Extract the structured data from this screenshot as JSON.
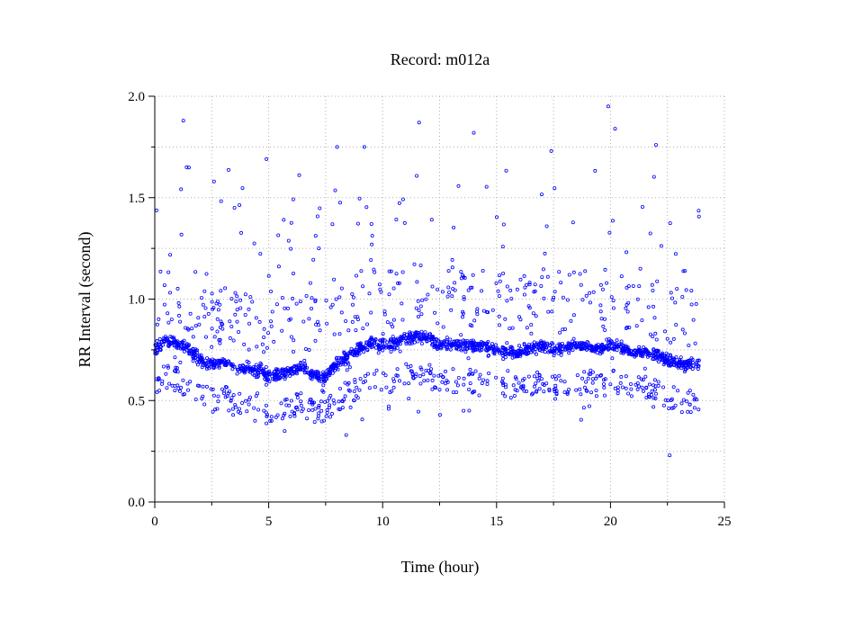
{
  "chart_data": {
    "type": "scatter",
    "title": "Record:  m012a",
    "xlabel": "Time (hour)",
    "ylabel": "RR Interval (second)",
    "xlim": [
      0,
      25
    ],
    "ylim": [
      0.0,
      2.0
    ],
    "xticks": [
      "0",
      "5",
      "10",
      "15",
      "20",
      "25"
    ],
    "yticks": [
      "0.0",
      "0.5",
      "1.0",
      "1.5",
      "2.0"
    ],
    "grid": true,
    "marker_color": "#0000ff",
    "marker": "open-circle",
    "series": [
      {
        "dense_band": {
          "description_points": [
            [
              0.0,
              0.75
            ],
            [
              0.5,
              0.8
            ],
            [
              1.0,
              0.78
            ],
            [
              1.5,
              0.75
            ],
            [
              2.0,
              0.7
            ],
            [
              2.5,
              0.68
            ],
            [
              3.0,
              0.7
            ],
            [
              3.5,
              0.66
            ],
            [
              4.0,
              0.66
            ],
            [
              4.5,
              0.65
            ],
            [
              5.0,
              0.62
            ],
            [
              5.5,
              0.63
            ],
            [
              6.0,
              0.65
            ],
            [
              6.5,
              0.66
            ],
            [
              7.0,
              0.62
            ],
            [
              7.5,
              0.62
            ],
            [
              8.0,
              0.68
            ],
            [
              8.5,
              0.72
            ],
            [
              9.0,
              0.76
            ],
            [
              9.5,
              0.78
            ],
            [
              10.0,
              0.77
            ],
            [
              10.5,
              0.78
            ],
            [
              11.0,
              0.8
            ],
            [
              11.5,
              0.82
            ],
            [
              12.0,
              0.8
            ],
            [
              12.5,
              0.78
            ],
            [
              13.0,
              0.78
            ],
            [
              13.5,
              0.78
            ],
            [
              14.0,
              0.77
            ],
            [
              14.5,
              0.76
            ],
            [
              15.0,
              0.75
            ],
            [
              15.5,
              0.74
            ],
            [
              16.0,
              0.74
            ],
            [
              16.5,
              0.76
            ],
            [
              17.0,
              0.77
            ],
            [
              17.5,
              0.75
            ],
            [
              18.0,
              0.76
            ],
            [
              18.5,
              0.77
            ],
            [
              19.0,
              0.77
            ],
            [
              19.5,
              0.75
            ],
            [
              20.0,
              0.78
            ],
            [
              20.5,
              0.76
            ],
            [
              21.0,
              0.74
            ],
            [
              21.5,
              0.74
            ],
            [
              22.0,
              0.72
            ],
            [
              22.5,
              0.7
            ],
            [
              23.0,
              0.68
            ],
            [
              23.5,
              0.68
            ],
            [
              24.0,
              0.68
            ]
          ]
        },
        "outliers": [
          [
            1.25,
            1.88
          ],
          [
            11.6,
            1.87
          ],
          [
            14.0,
            1.82
          ],
          [
            19.9,
            1.95
          ],
          [
            20.2,
            1.84
          ],
          [
            22.0,
            1.76
          ],
          [
            22.6,
            0.23
          ],
          [
            4.9,
            1.69
          ],
          [
            8.0,
            1.75
          ],
          [
            9.2,
            1.75
          ],
          [
            1.4,
            1.65
          ],
          [
            2.6,
            1.58
          ],
          [
            3.5,
            1.45
          ],
          [
            17.4,
            1.73
          ],
          [
            7.2,
            1.25
          ],
          [
            8.4,
            0.33
          ],
          [
            5.7,
            0.35
          ],
          [
            13.8,
            0.45
          ],
          [
            4.4,
            0.4
          ]
        ]
      }
    ]
  }
}
